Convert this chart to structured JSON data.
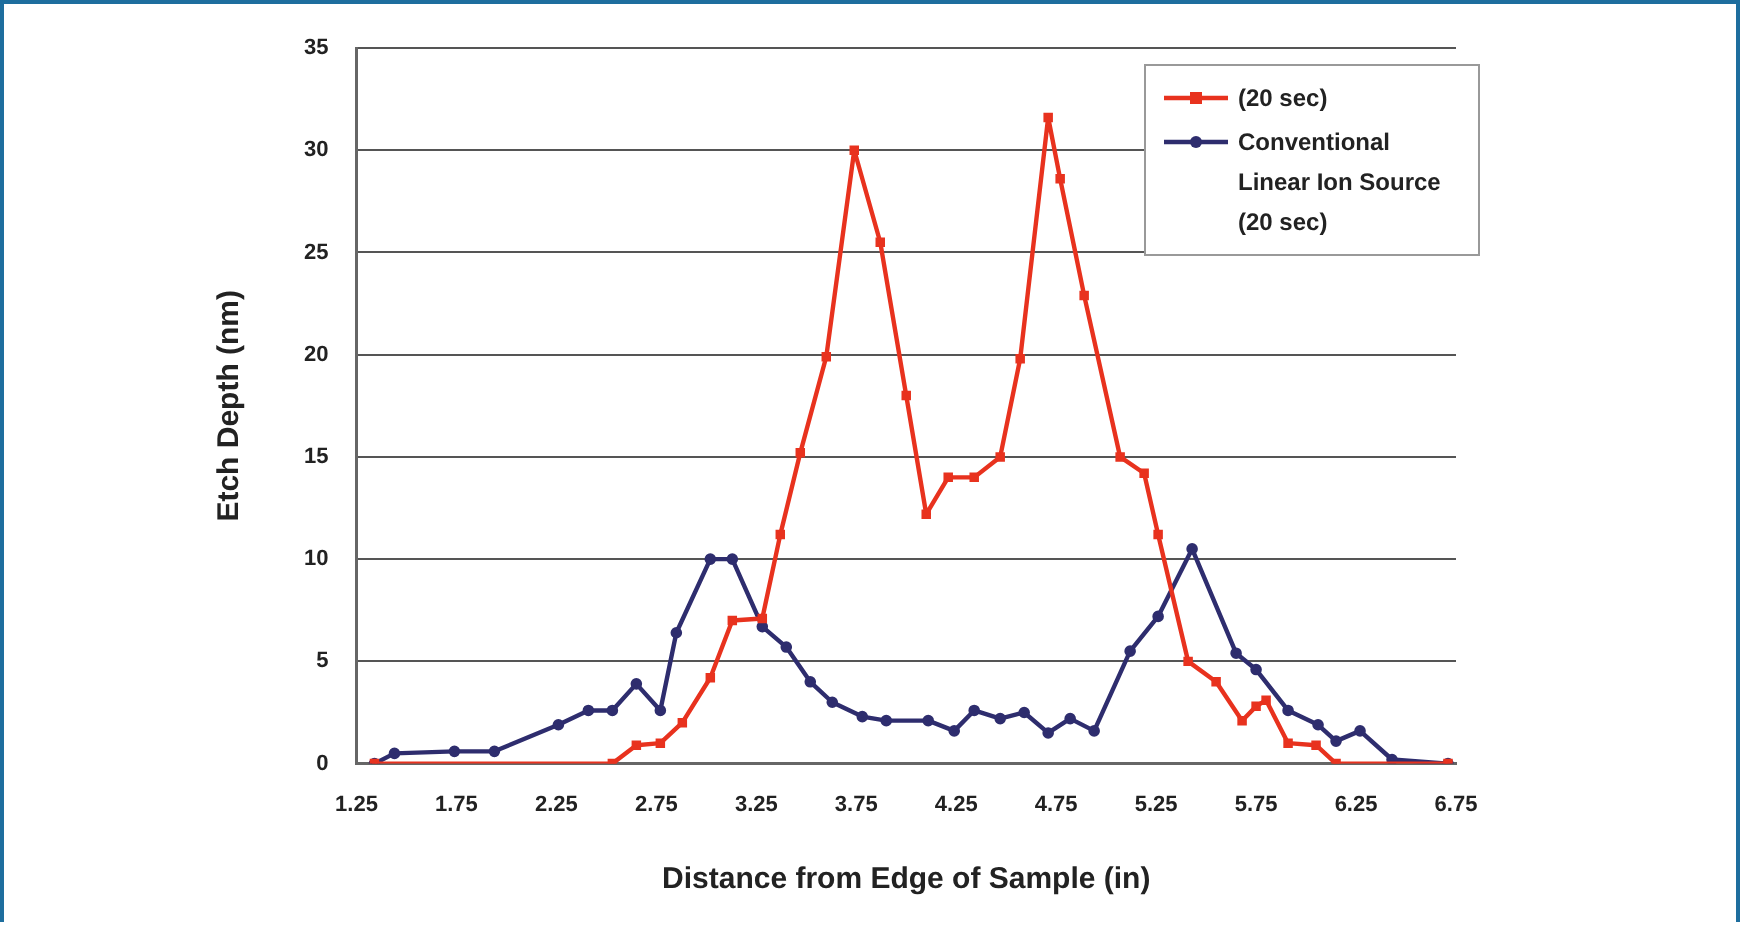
{
  "chart_data": {
    "type": "line",
    "xlabel": "Distance from Edge of Sample (in)",
    "ylabel": "Etch Depth (nm)",
    "xlim": [
      1.25,
      6.75
    ],
    "xticks": [
      1.25,
      1.75,
      2.25,
      2.75,
      3.25,
      3.75,
      4.25,
      4.75,
      5.25,
      5.75,
      6.25,
      6.75
    ],
    "ylim": [
      0,
      35
    ],
    "yticks": [
      0,
      5,
      10,
      15,
      20,
      25,
      30,
      35
    ],
    "grid": "y",
    "legend": "top right",
    "series": [
      {
        "name": "(20 sec)",
        "color": "#e8321e",
        "marker": "square",
        "x": [
          1.34,
          2.53,
          2.65,
          2.77,
          2.88,
          3.02,
          3.13,
          3.28,
          3.37,
          3.47,
          3.6,
          3.74,
          3.87,
          4.0,
          4.1,
          4.21,
          4.34,
          4.47,
          4.57,
          4.71,
          4.77,
          4.89,
          5.07,
          5.19,
          5.26,
          5.41,
          5.55,
          5.68,
          5.75,
          5.8,
          5.91,
          6.05,
          6.15,
          6.71
        ],
        "values": [
          0,
          0,
          0.9,
          1,
          2,
          4.2,
          7,
          7.1,
          11.2,
          15.2,
          19.9,
          30,
          25.5,
          18,
          12.2,
          14,
          14,
          15,
          19.8,
          31.6,
          28.6,
          22.9,
          15,
          14.2,
          11.2,
          5,
          4,
          2.1,
          2.8,
          3.1,
          1,
          0.9,
          0,
          0
        ]
      },
      {
        "name": "Conventional Linear Ion Source (20 sec)",
        "color": "#2e2d6e",
        "marker": "circle",
        "x": [
          1.34,
          1.44,
          1.74,
          1.94,
          2.26,
          2.41,
          2.53,
          2.65,
          2.77,
          2.85,
          3.02,
          3.13,
          3.28,
          3.4,
          3.52,
          3.63,
          3.78,
          3.9,
          4.11,
          4.24,
          4.34,
          4.47,
          4.59,
          4.71,
          4.82,
          4.94,
          5.12,
          5.26,
          5.43,
          5.65,
          5.75,
          5.91,
          6.06,
          6.15,
          6.27,
          6.43,
          6.71
        ],
        "values": [
          0,
          0.5,
          0.6,
          0.6,
          1.9,
          2.6,
          2.6,
          3.9,
          2.6,
          6.4,
          10,
          10,
          6.7,
          5.7,
          4,
          3,
          2.3,
          2.1,
          2.1,
          1.6,
          2.6,
          2.2,
          2.5,
          1.5,
          2.2,
          1.6,
          5.5,
          7.2,
          10.5,
          5.4,
          4.6,
          2.6,
          1.9,
          1.1,
          1.6,
          0.2,
          0
        ]
      }
    ]
  }
}
